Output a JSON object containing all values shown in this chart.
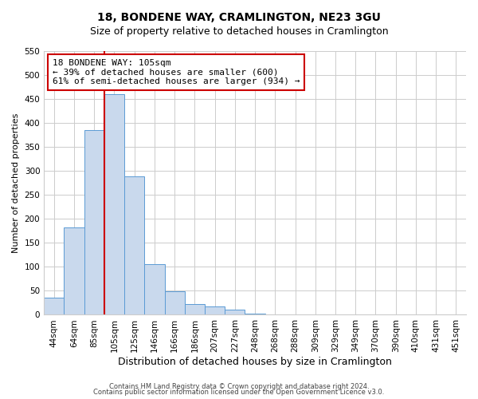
{
  "title": "18, BONDENE WAY, CRAMLINGTON, NE23 3GU",
  "subtitle": "Size of property relative to detached houses in Cramlington",
  "xlabel": "Distribution of detached houses by size in Cramlington",
  "ylabel": "Number of detached properties",
  "bar_labels": [
    "44sqm",
    "64sqm",
    "85sqm",
    "105sqm",
    "125sqm",
    "146sqm",
    "166sqm",
    "186sqm",
    "207sqm",
    "227sqm",
    "248sqm",
    "268sqm",
    "288sqm",
    "309sqm",
    "329sqm",
    "349sqm",
    "370sqm",
    "390sqm",
    "410sqm",
    "431sqm",
    "451sqm"
  ],
  "bar_heights": [
    35,
    183,
    385,
    460,
    288,
    105,
    49,
    23,
    18,
    10,
    2,
    1,
    0,
    0,
    0,
    0,
    0,
    0,
    0,
    0,
    1
  ],
  "bar_color": "#c9d9ed",
  "bar_edge_color": "#5b9bd5",
  "vline_x": 3,
  "vline_color": "#cc0000",
  "annotation_line1": "18 BONDENE WAY: 105sqm",
  "annotation_line2": "← 39% of detached houses are smaller (600)",
  "annotation_line3": "61% of semi-detached houses are larger (934) →",
  "annotation_box_color": "#ffffff",
  "annotation_box_edge_color": "#cc0000",
  "ylim": [
    0,
    550
  ],
  "yticks": [
    0,
    50,
    100,
    150,
    200,
    250,
    300,
    350,
    400,
    450,
    500,
    550
  ],
  "footer1": "Contains HM Land Registry data © Crown copyright and database right 2024.",
  "footer2": "Contains public sector information licensed under the Open Government Licence v3.0.",
  "background_color": "#ffffff",
  "grid_color": "#cccccc",
  "title_fontsize": 10,
  "subtitle_fontsize": 9,
  "xlabel_fontsize": 9,
  "ylabel_fontsize": 8,
  "tick_fontsize": 7.5
}
